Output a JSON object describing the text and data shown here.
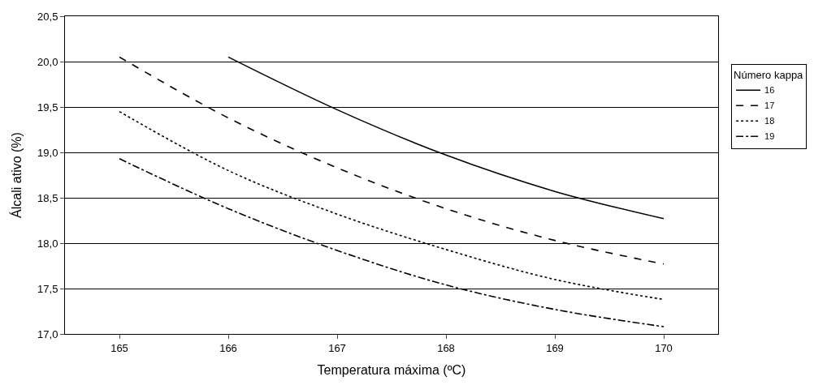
{
  "chart_data": {
    "type": "line",
    "xlabel": "Temperatura máxima (ºC)",
    "ylabel": "Álcali ativo (%)",
    "legend_title": "Número kappa",
    "x": [
      165,
      166,
      167,
      168,
      169,
      170
    ],
    "xlim": [
      164.5,
      170.5
    ],
    "xticks": [
      165,
      166,
      167,
      168,
      169,
      170
    ],
    "ylim": [
      17.0,
      20.5
    ],
    "yticks": [
      {
        "value": 17.0,
        "label": "17,0"
      },
      {
        "value": 17.5,
        "label": "17,5"
      },
      {
        "value": 18.0,
        "label": "18,0"
      },
      {
        "value": 18.5,
        "label": "18,5"
      },
      {
        "value": 19.0,
        "label": "19,0"
      },
      {
        "value": 19.5,
        "label": "19,5"
      },
      {
        "value": 20.0,
        "label": "20,0"
      },
      {
        "value": 20.5,
        "label": "20,5"
      }
    ],
    "grid": "y",
    "legend": "right",
    "marker": "none",
    "series": [
      {
        "name": "16",
        "color": "#000000",
        "line_style": "solid",
        "values": [
          null,
          20.05,
          19.47,
          18.97,
          18.57,
          18.27
        ]
      },
      {
        "name": "17",
        "color": "#000000",
        "line_style": "dashed",
        "values": [
          20.05,
          19.38,
          18.83,
          18.38,
          18.03,
          17.77
        ]
      },
      {
        "name": "18",
        "color": "#000000",
        "line_style": "dotted",
        "values": [
          19.45,
          18.8,
          18.32,
          17.93,
          17.6,
          17.38
        ]
      },
      {
        "name": "19",
        "color": "#000000",
        "line_style": "dashdot",
        "values": [
          18.93,
          18.38,
          17.92,
          17.54,
          17.27,
          17.08
        ]
      }
    ]
  }
}
